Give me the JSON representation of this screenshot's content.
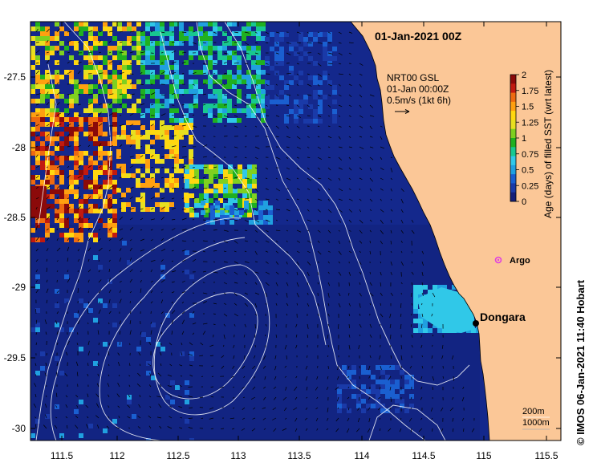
{
  "title": "01-Jan-2021 00Z",
  "credit": "©  IMOS 06-Jan-2021 11:40 Hobart",
  "current_legend": {
    "line1": "NRT00 GSL",
    "line2": "01-Jan 00:00Z",
    "line3": "0.5m/s (1kt 6h)"
  },
  "colorbar": {
    "label": "Age (days) of filled SST (wrt latest)",
    "ticks": [
      "2",
      "1.75",
      "1.5",
      "1.25",
      "1",
      "0.75",
      "0.5",
      "0.25",
      "0"
    ],
    "colors": [
      "#8b0a0a",
      "#c21a10",
      "#ee6a10",
      "#ffa010",
      "#ffd810",
      "#e8e020",
      "#7fd020",
      "#20b020",
      "#18c890",
      "#30c8e8",
      "#20a0e0",
      "#1a5fd0",
      "#1a3aa8",
      "#141e78"
    ]
  },
  "places": {
    "dongara": "Dongara",
    "argo": "Argo"
  },
  "depth_legend": {
    "line1": "200m",
    "line2": "1000m"
  },
  "lon_ticks": [
    "111.5",
    "112",
    "112.5",
    "113",
    "113.5",
    "114",
    "114.5",
    "115",
    "115.5"
  ],
  "lat_ticks": [
    "-27.5",
    "-28",
    "-28.5",
    "-29",
    "-29.5",
    "-30"
  ],
  "colors": {
    "ocean": "#14288c",
    "land": "#fbc797",
    "argo": "#e040e0"
  }
}
